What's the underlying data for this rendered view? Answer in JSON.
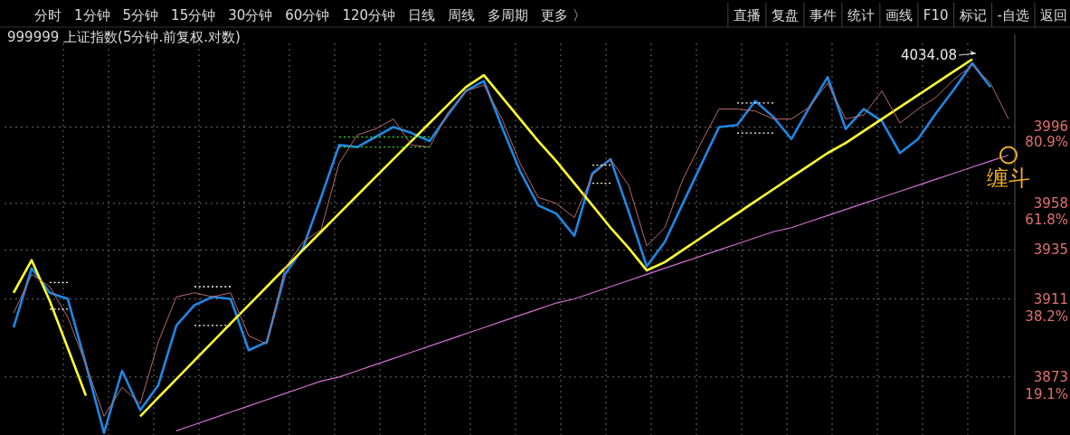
{
  "chart_data": {
    "type": "line",
    "title": "999999 上证指数(5分钟.前复权.对数)",
    "annotations": [
      "分时",
      "1分钟",
      "5分钟",
      "15分钟",
      "30分钟",
      "60分钟",
      "120分钟",
      "日线",
      "周线",
      "多周期",
      "更多 〉",
      "直播",
      "复盘",
      "事件",
      "统计",
      "画线",
      "F10",
      "标记",
      "-自选",
      "返回",
      "4034.08",
      {
        "text": "缠斗",
        "y": 3982
      }
    ],
    "y2lim": [
      9.1,
      105
    ],
    "y2ticks": [
      {
        "value": 80.9,
        "label": "80.9%"
      },
      {
        "value": 61.8,
        "label": "61.8%"
      },
      {
        "value": 38.2,
        "label": "38.2%"
      },
      {
        "value": 19.1,
        "label": "19.1%"
      }
    ],
    "categories": [
      null,
      null,
      null,
      null,
      null,
      null,
      null,
      null,
      null,
      null,
      null,
      null,
      null,
      null,
      null,
      null,
      null,
      null,
      null,
      null,
      null,
      null,
      null,
      null,
      null,
      null,
      null,
      null,
      null,
      null,
      null,
      null,
      null,
      null,
      null,
      null,
      null,
      null,
      null,
      null,
      null,
      null,
      null,
      null,
      null,
      null,
      null,
      null,
      null,
      null,
      null,
      null,
      null,
      null,
      null,
      null
    ],
    "log": "y",
    "grid": true,
    "tick_labels": "y",
    "ylim": [
      3845,
      4038
    ],
    "yticks": [
      3996,
      3958,
      3935,
      3911,
      3873
    ],
    "series": [
      {
        "color": "#b86a6a",
        "values": [
          3904,
          3923,
          3917,
          3902,
          3879,
          3854,
          3868,
          3860,
          3890,
          3912,
          3914,
          3912,
          3914,
          3893,
          3889,
          3926,
          3939,
          3945,
          3978,
          3992,
          3995,
          4000,
          3987,
          3986,
          4003,
          4014,
          4017,
          4000,
          3978,
          3961,
          3958,
          3951,
          3972,
          3980,
          3967,
          3937,
          3946,
          3970,
          3988,
          4005,
          4005,
          4004,
          4000,
          4000,
          4006,
          4018,
          4000,
          4002,
          4014,
          3998,
          4005,
          4011,
          4020,
          4027,
          4018,
          4000
        ]
      },
      {
        "color": "#1e88e5",
        "values": [
          3897,
          3926,
          3914,
          3911,
          3879,
          3846,
          3876,
          3857,
          3869,
          3898,
          3908,
          3912,
          3911,
          3886,
          3890,
          3923,
          3936,
          3961,
          3987,
          3986,
          3991,
          3996,
          3993,
          3989,
          4002,
          4014,
          4019,
          3996,
          3974,
          3957,
          3953,
          3942,
          3973,
          3980,
          3954,
          3927,
          3939,
          3958,
          3977,
          3996,
          3997,
          4009,
          4001,
          3990,
          4006,
          4021,
          3995,
          4005,
          3999,
          3983,
          3990,
          4003,
          4015,
          4028,
          4016,
          null
        ]
      },
      {
        "color": "#ffff33",
        "values": [
          3914,
          3930,
          3910,
          3887,
          3864,
          null,
          null,
          3854,
          3863,
          3872,
          3881,
          3890,
          3899,
          3908,
          3917,
          3926,
          3935,
          3944,
          3953,
          3962,
          3971,
          3980,
          3989,
          3998,
          4007,
          4016,
          4022,
          4011,
          4000,
          3989,
          3979,
          3968,
          3957,
          3946,
          3936,
          3925,
          3929,
          3935,
          3941,
          3947,
          3953,
          3959,
          3965,
          3971,
          3977,
          3983,
          3988,
          3994,
          4000,
          4006,
          4012,
          4018,
          4024,
          4030,
          null,
          null
        ]
      },
      {
        "color": "#d070d0",
        "values": [
          null,
          null,
          null,
          null,
          null,
          null,
          null,
          null,
          null,
          3847,
          3850,
          3853,
          3856,
          3859,
          3862,
          3865,
          3868,
          3871,
          3873,
          3876,
          3879,
          3882,
          3885,
          3888,
          3891,
          3894,
          3897,
          3900,
          3903,
          3906,
          3909,
          3911,
          3914,
          3917,
          3920,
          3923,
          3926,
          3929,
          3932,
          3935,
          3938,
          3941,
          3944,
          3946,
          3949,
          3952,
          3955,
          3958,
          3961,
          3964,
          3967,
          3970,
          3973,
          3976,
          3979,
          3982
        ]
      },
      {
        "color": "#ffffff",
        "line_style": "dotted",
        "values": [
          null,
          null,
          3919,
          3919,
          null,
          null,
          null,
          null,
          null,
          null,
          null,
          null,
          null,
          null,
          null,
          null,
          null,
          null,
          null,
          null,
          null,
          null,
          null,
          null,
          null,
          null,
          null,
          null,
          null,
          null,
          null,
          null,
          null,
          null,
          null,
          null,
          null,
          null,
          null,
          null,
          null,
          null,
          null,
          null,
          null,
          null,
          null,
          null,
          null,
          null,
          null,
          null,
          null,
          null,
          null,
          null
        ]
      },
      {
        "color": "#ffffff",
        "line_style": "dotted",
        "values": [
          null,
          null,
          3906,
          3906,
          null,
          null,
          null,
          null,
          null,
          null,
          null,
          null,
          null,
          null,
          null,
          null,
          null,
          null,
          null,
          null,
          null,
          null,
          null,
          null,
          null,
          null,
          null,
          null,
          null,
          null,
          null,
          null,
          null,
          null,
          null,
          null,
          null,
          null,
          null,
          null,
          null,
          null,
          null,
          null,
          null,
          null,
          null,
          null,
          null,
          null,
          null,
          null,
          null,
          null,
          null,
          null
        ]
      },
      {
        "color": "#ffffff",
        "line_style": "dotted",
        "values": [
          null,
          null,
          null,
          null,
          null,
          null,
          null,
          null,
          null,
          null,
          3917,
          3917,
          3917,
          null,
          null,
          null,
          null,
          null,
          null,
          null,
          null,
          null,
          null,
          null,
          null,
          null,
          null,
          null,
          null,
          null,
          null,
          null,
          null,
          null,
          null,
          null,
          null,
          null,
          null,
          null,
          null,
          null,
          null,
          null,
          null,
          null,
          null,
          null,
          null,
          null,
          null,
          null,
          null,
          null,
          null,
          null
        ]
      },
      {
        "color": "#ffffff",
        "line_style": "dotted",
        "values": [
          null,
          null,
          null,
          null,
          null,
          null,
          null,
          null,
          null,
          null,
          3898,
          3898,
          3898,
          null,
          null,
          null,
          null,
          null,
          null,
          null,
          null,
          null,
          null,
          null,
          null,
          null,
          null,
          null,
          null,
          null,
          null,
          null,
          null,
          null,
          null,
          null,
          null,
          null,
          null,
          null,
          null,
          null,
          null,
          null,
          null,
          null,
          null,
          null,
          null,
          null,
          null,
          null,
          null,
          null,
          null,
          null
        ]
      },
      {
        "color": "#33cc33",
        "line_style": "dotted",
        "values": [
          null,
          null,
          null,
          null,
          null,
          null,
          null,
          null,
          null,
          null,
          null,
          null,
          null,
          null,
          null,
          null,
          null,
          null,
          3991,
          3991,
          3991,
          3991,
          3991,
          3991,
          null,
          null,
          null,
          null,
          null,
          null,
          null,
          null,
          null,
          null,
          null,
          null,
          null,
          null,
          null,
          null,
          null,
          null,
          null,
          null,
          null,
          null,
          null,
          null,
          null,
          null,
          null,
          null,
          null,
          null,
          null,
          null
        ]
      },
      {
        "color": "#33cc33",
        "line_style": "dotted",
        "values": [
          null,
          null,
          null,
          null,
          null,
          null,
          null,
          null,
          null,
          null,
          null,
          null,
          null,
          null,
          null,
          null,
          null,
          null,
          3986,
          3986,
          3986,
          3986,
          3986,
          3986,
          null,
          null,
          null,
          null,
          null,
          null,
          null,
          null,
          null,
          null,
          null,
          null,
          null,
          null,
          null,
          null,
          null,
          null,
          null,
          null,
          null,
          null,
          null,
          null,
          null,
          null,
          null,
          null,
          null,
          null,
          null,
          null
        ]
      },
      {
        "color": "#ffffcc",
        "line_style": "dotted",
        "values": [
          null,
          null,
          null,
          null,
          null,
          null,
          null,
          null,
          null,
          null,
          null,
          null,
          null,
          null,
          null,
          null,
          null,
          null,
          null,
          null,
          null,
          null,
          null,
          null,
          null,
          null,
          null,
          null,
          null,
          null,
          null,
          null,
          3977,
          3977,
          null,
          null,
          null,
          null,
          null,
          null,
          null,
          null,
          null,
          null,
          null,
          null,
          null,
          null,
          null,
          null,
          null,
          null,
          null,
          null,
          null,
          null
        ]
      },
      {
        "color": "#ffffcc",
        "line_style": "dotted",
        "values": [
          null,
          null,
          null,
          null,
          null,
          null,
          null,
          null,
          null,
          null,
          null,
          null,
          null,
          null,
          null,
          null,
          null,
          null,
          null,
          null,
          null,
          null,
          null,
          null,
          null,
          null,
          null,
          null,
          null,
          null,
          null,
          null,
          3968,
          3968,
          null,
          null,
          null,
          null,
          null,
          null,
          null,
          null,
          null,
          null,
          null,
          null,
          null,
          null,
          null,
          null,
          null,
          null,
          null,
          null,
          null,
          null
        ]
      },
      {
        "color": "#ffffff",
        "line_style": "dotted",
        "values": [
          null,
          null,
          null,
          null,
          null,
          null,
          null,
          null,
          null,
          null,
          null,
          null,
          null,
          null,
          null,
          null,
          null,
          null,
          null,
          null,
          null,
          null,
          null,
          null,
          null,
          null,
          null,
          null,
          null,
          null,
          null,
          null,
          null,
          null,
          null,
          null,
          null,
          null,
          null,
          null,
          4008,
          4008,
          4008,
          null,
          null,
          null,
          null,
          null,
          null,
          null,
          null,
          null,
          null,
          null,
          null,
          null
        ]
      },
      {
        "color": "#ffffff",
        "line_style": "dotted",
        "values": [
          null,
          null,
          null,
          null,
          null,
          null,
          null,
          null,
          null,
          null,
          null,
          null,
          null,
          null,
          null,
          null,
          null,
          null,
          null,
          null,
          null,
          null,
          null,
          null,
          null,
          null,
          null,
          null,
          null,
          null,
          null,
          null,
          null,
          null,
          null,
          null,
          null,
          null,
          null,
          null,
          3993,
          3993,
          3993,
          null,
          null,
          null,
          null,
          null,
          null,
          null,
          null,
          null,
          null,
          null,
          null,
          null
        ]
      }
    ]
  }
}
